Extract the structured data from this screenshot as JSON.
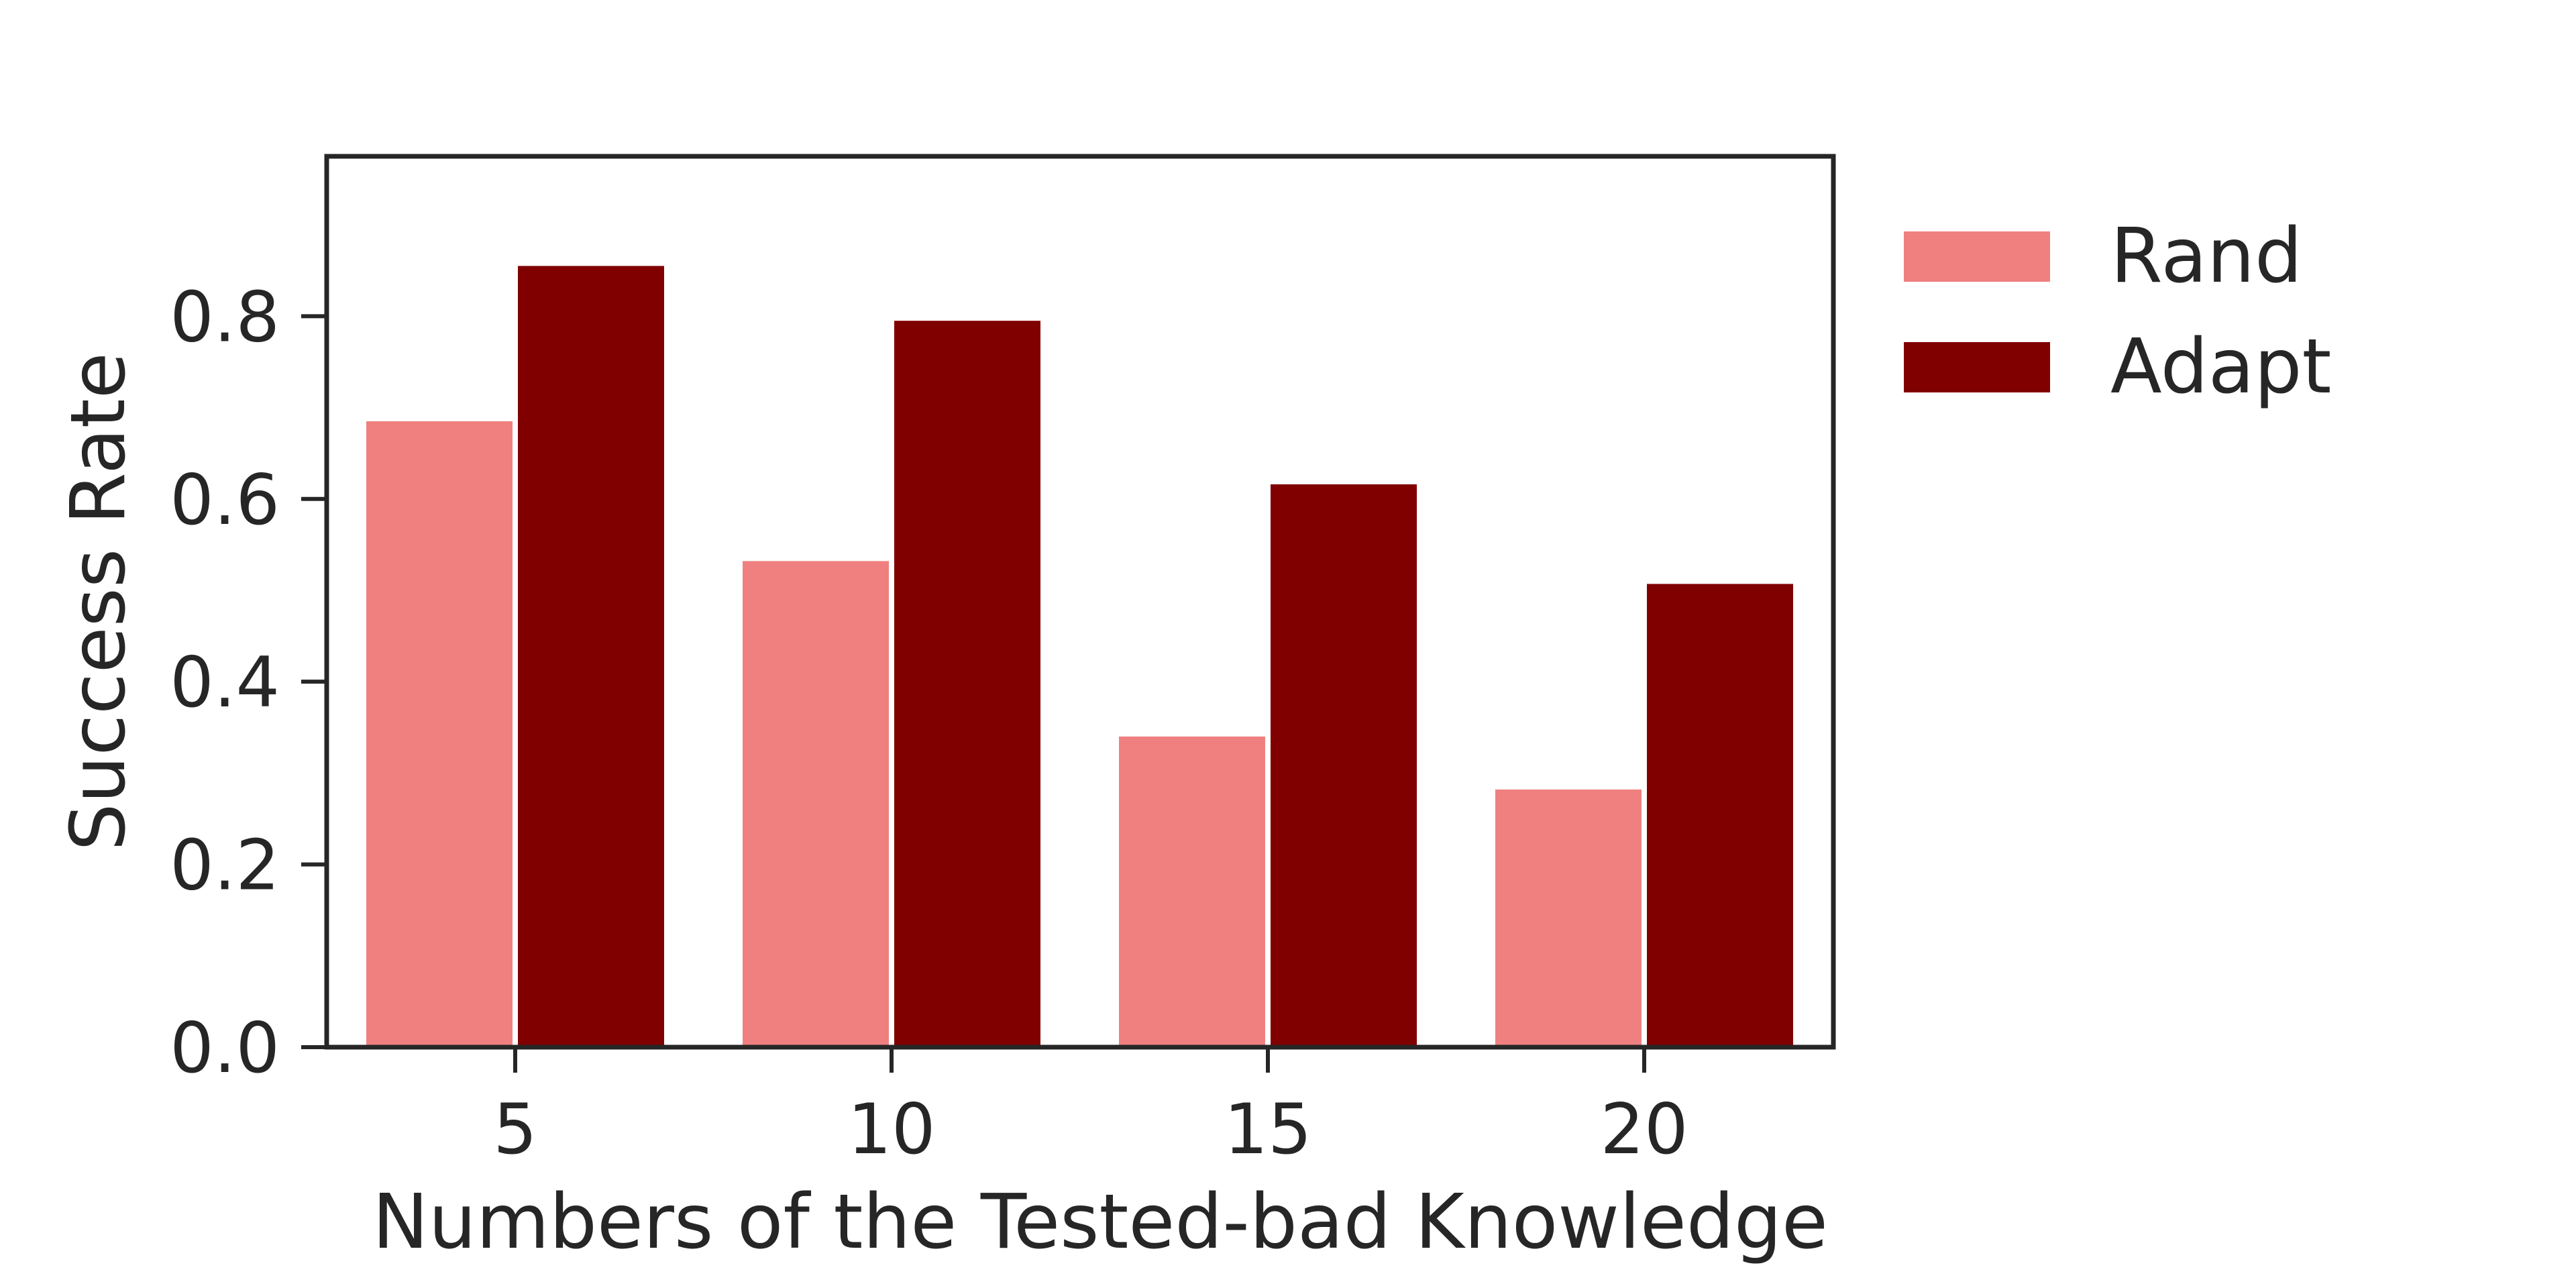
{
  "chart_data": {
    "type": "bar",
    "title": "",
    "xlabel": "Numbers of the Tested-bad Knowledge",
    "ylabel": "Success Rate",
    "categories": [
      "5",
      "10",
      "15",
      "20"
    ],
    "series": [
      {
        "name": "Rand",
        "color": "#F08080",
        "values": [
          0.685,
          0.532,
          0.34,
          0.282
        ]
      },
      {
        "name": "Adapt",
        "color": "#800000",
        "values": [
          0.855,
          0.795,
          0.616,
          0.507
        ]
      }
    ],
    "ylim": [
      0,
      0.975
    ],
    "yticks": [
      "0.0",
      "0.2",
      "0.4",
      "0.6",
      "0.8"
    ],
    "grid": false,
    "legend_position": "outside-right-top"
  }
}
